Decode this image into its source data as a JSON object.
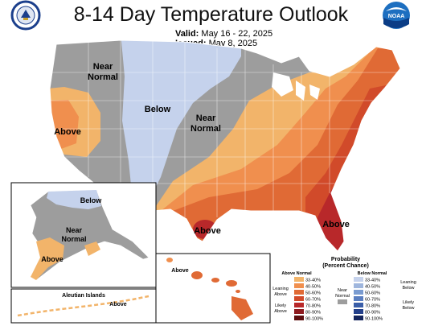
{
  "header": {
    "title": "8-14 Day Temperature Outlook",
    "valid_label": "Valid:",
    "valid_value": "May 16 - 22, 2025",
    "issued_label": "Issued:",
    "issued_value": "May 8, 2025"
  },
  "logos": {
    "left": "doc-seal-icon",
    "right": "noaa-logo-icon",
    "noaa_text": "NOAA"
  },
  "colors": {
    "near_normal": "#9d9d9d",
    "below_33_40": "#c5d2ec",
    "above_33_40": "#f2b46a",
    "above_40_50": "#f08f4e",
    "above_50_60": "#e06a35",
    "above_60_70": "#d14a2a",
    "above_70_80": "#b8282a",
    "above_80_90": "#8e1a1f",
    "above_90_100": "#5e0e10"
  },
  "regions": {
    "near_normal_west": "Near\nNormal",
    "near_normal_west_l1": "Near",
    "near_normal_west_l2": "Normal",
    "below_center": "Below",
    "near_normal_center_l1": "Near",
    "near_normal_center_l2": "Normal",
    "above_california": "Above",
    "above_texas": "Above",
    "above_florida": "Above"
  },
  "alaska": {
    "below": "Below",
    "near_l1": "Near",
    "near_l2": "Normal",
    "above": "Above",
    "aleutian_title": "Aleutian Islands",
    "aleutian_above": "Above"
  },
  "hawaii": {
    "above": "Above"
  },
  "legend": {
    "title_l1": "Probability",
    "title_l2": "(Percent Chance)",
    "above_header": "Above Normal",
    "below_header": "Below Normal",
    "above_bins": [
      "33-40%",
      "40-50%",
      "50-60%",
      "60-70%",
      "70-80%",
      "80-90%",
      "90-100%"
    ],
    "below_bins": [
      "33-40%",
      "40-50%",
      "50-60%",
      "60-70%",
      "70-80%",
      "80-90%",
      "90-100%"
    ],
    "above_colors": [
      "#f2b46a",
      "#f08f4e",
      "#e06a35",
      "#d14a2a",
      "#b8282a",
      "#8e1a1f",
      "#5e0e10"
    ],
    "below_colors": [
      "#c5d2ec",
      "#9fb6dd",
      "#7a9bd0",
      "#5a7ec0",
      "#3a5ea8",
      "#233f8a",
      "#14245c"
    ],
    "leaning_above_l1": "Leaning",
    "leaning_above_l2": "Above",
    "likely_above_l1": "Likely",
    "likely_above_l2": "Above",
    "near_normal_l1": "Near",
    "near_normal_l2": "Normal",
    "leaning_below_l1": "Leaning",
    "leaning_below_l2": "Below",
    "likely_below_l1": "Likely",
    "likely_below_l2": "Below"
  }
}
